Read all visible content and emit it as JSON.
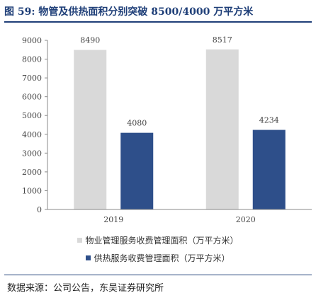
{
  "title": "图 59:  物管及供热面积分别突破 8500/4000 万平方米",
  "source": "数据来源：公司公告，东吴证券研究所",
  "colors": {
    "title": "#1f3f78",
    "series_property": "#d9d9d9",
    "series_heating": "#2e4f8a"
  },
  "chart_data": {
    "type": "bar",
    "categories": [
      "2019",
      "2020"
    ],
    "series": [
      {
        "name": "物业管理服务收费管理面积（万平方米）",
        "values": [
          8490,
          8517
        ]
      },
      {
        "name": "供热服务收费管理面积（万平方米）",
        "values": [
          4080,
          4234
        ]
      }
    ],
    "yticks": [
      0,
      1000,
      2000,
      3000,
      4000,
      5000,
      6000,
      7000,
      8000,
      9000
    ],
    "ylim": [
      0,
      9000
    ],
    "legend_position": "bottom",
    "grid": false
  }
}
